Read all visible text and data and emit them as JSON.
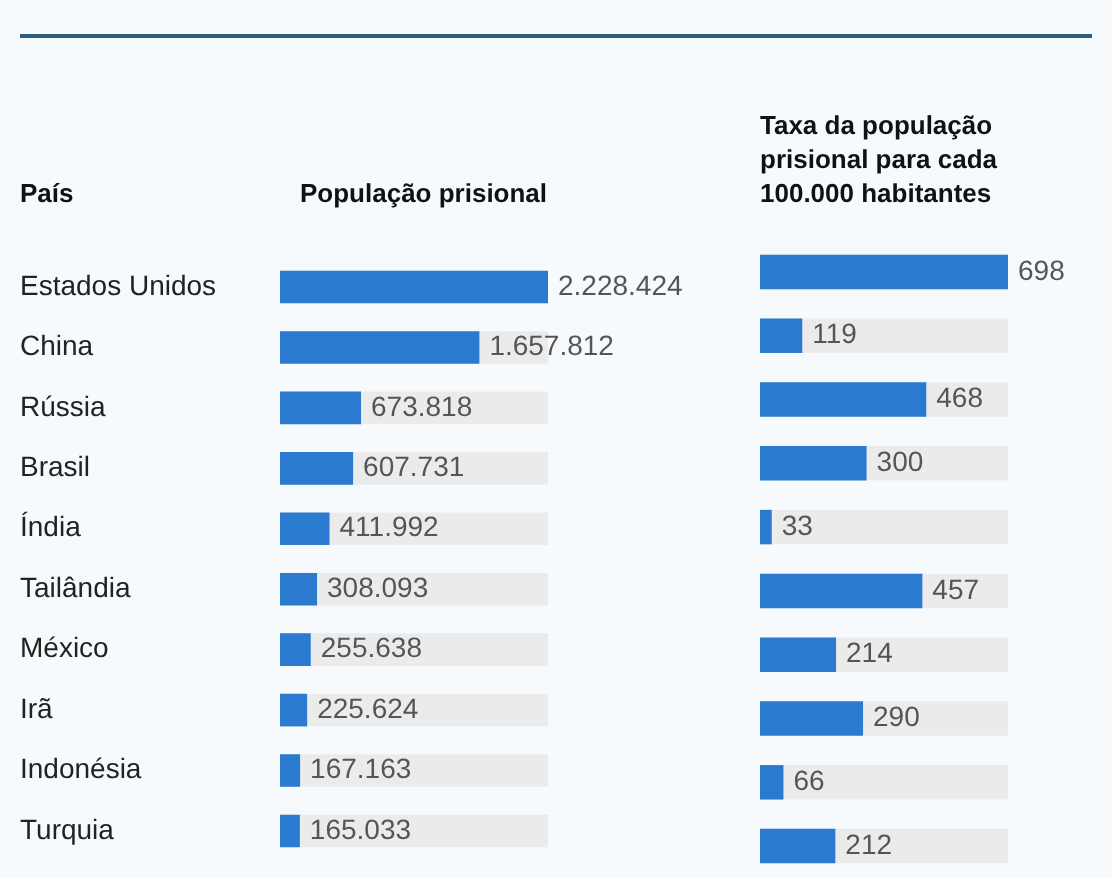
{
  "chart_data": [
    {
      "type": "bar",
      "orientation": "horizontal",
      "title": "População prisional",
      "ylabel": "País",
      "categories": [
        "Estados Unidos",
        "China",
        "Rússia",
        "Brasil",
        "Índia",
        "Tailândia",
        "México",
        "Irã",
        "Indonésia",
        "Turquia"
      ],
      "values": [
        2228424,
        1657812,
        673818,
        607731,
        411992,
        308093,
        255638,
        225624,
        167163,
        165033
      ],
      "value_labels": [
        "2.228.424",
        "1.657.812",
        "673.818",
        "607.731",
        "411.992",
        "308.093",
        "255.638",
        "225.624",
        "167.163",
        "165.033"
      ],
      "color": "#2a7bd0",
      "xlim": [
        0,
        2228424
      ],
      "tick_labels": "y"
    },
    {
      "type": "bar",
      "orientation": "horizontal",
      "title": "Taxa da população prisional para cada 100.000 habitantes",
      "categories": [
        null,
        null,
        null,
        null,
        null,
        null,
        null,
        null,
        null,
        null
      ],
      "values": [
        698,
        119,
        468,
        300,
        33,
        457,
        214,
        290,
        66,
        212
      ],
      "data_labels": true,
      "color": "#2a7bd0",
      "xlim": [
        0,
        698
      ],
      "tick_labels": false
    }
  ]
}
